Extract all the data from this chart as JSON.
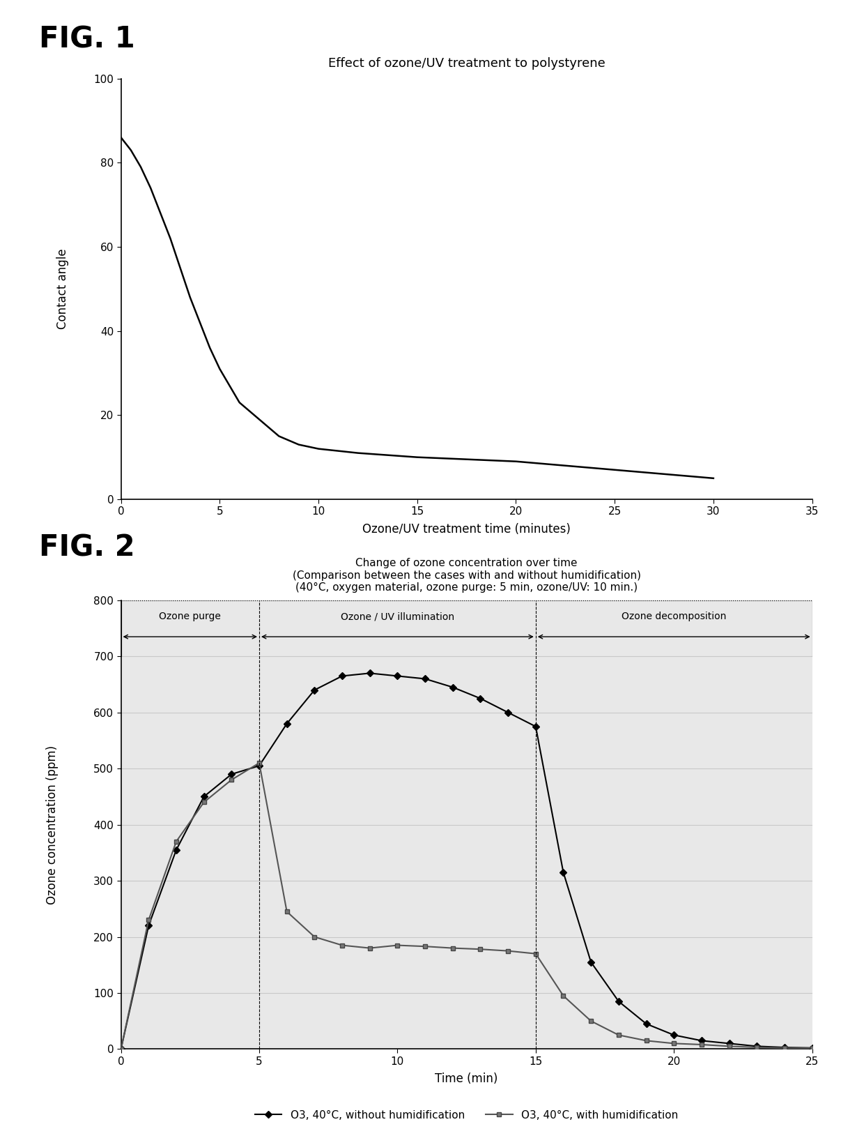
{
  "fig1": {
    "title": "Effect of ozone/UV treatment to polystyrene",
    "xlabel": "Ozone/UV treatment time (minutes)",
    "ylabel": "Contact angle",
    "xlim": [
      0,
      35
    ],
    "ylim": [
      0,
      100
    ],
    "xticks": [
      0,
      5,
      10,
      15,
      20,
      25,
      30,
      35
    ],
    "yticks": [
      0,
      20,
      40,
      60,
      80,
      100
    ],
    "x": [
      0,
      0.5,
      1,
      1.5,
      2,
      2.5,
      3,
      3.5,
      4,
      4.5,
      5,
      5.5,
      6,
      6.5,
      7,
      7.5,
      8,
      9,
      10,
      12,
      15,
      20,
      25,
      30
    ],
    "y": [
      86,
      83,
      79,
      74,
      68,
      62,
      55,
      48,
      42,
      36,
      31,
      27,
      23,
      21,
      19,
      17,
      15,
      13,
      12,
      11,
      10,
      9,
      7,
      5
    ]
  },
  "fig2": {
    "title": "Change of ozone concentration over time\n(Comparison between the cases with and without humidification)\n(40°C, oxygen material, ozone purge: 5 min, ozone/UV: 10 min.)",
    "xlabel": "Time (min)",
    "ylabel": "Ozone concentration (ppm)",
    "xlim": [
      0,
      25
    ],
    "ylim": [
      0,
      800
    ],
    "xticks": [
      0,
      5,
      10,
      15,
      20,
      25
    ],
    "yticks": [
      0,
      100,
      200,
      300,
      400,
      500,
      600,
      700,
      800
    ],
    "phase_boundaries": [
      5,
      15
    ],
    "phase_labels": [
      "Ozone purge",
      "Ozone / UV illumination",
      "Ozone decomposition"
    ],
    "series1_label": "O3, 40°C, without humidification",
    "series2_label": "O3, 40°C, with humidification",
    "series1_x": [
      0,
      1,
      2,
      3,
      4,
      5,
      6,
      7,
      8,
      9,
      10,
      11,
      12,
      13,
      14,
      15,
      16,
      17,
      18,
      19,
      20,
      21,
      22,
      23,
      24,
      25
    ],
    "series1_y": [
      0,
      220,
      355,
      450,
      490,
      505,
      580,
      640,
      665,
      670,
      665,
      660,
      645,
      625,
      600,
      575,
      315,
      155,
      85,
      45,
      25,
      15,
      10,
      5,
      3,
      2
    ],
    "series2_x": [
      0,
      1,
      2,
      3,
      4,
      5,
      6,
      7,
      8,
      9,
      10,
      11,
      12,
      13,
      14,
      15,
      16,
      17,
      18,
      19,
      20,
      21,
      22,
      23,
      24,
      25
    ],
    "series2_y": [
      0,
      230,
      370,
      440,
      480,
      510,
      245,
      200,
      185,
      180,
      185,
      183,
      180,
      178,
      175,
      170,
      95,
      50,
      25,
      15,
      10,
      8,
      5,
      3,
      2,
      2
    ],
    "grid_color": "#c8c8c8",
    "bg_color": "#e8e8e8"
  },
  "fig1_label": "FIG. 1",
  "fig2_label": "FIG. 2"
}
